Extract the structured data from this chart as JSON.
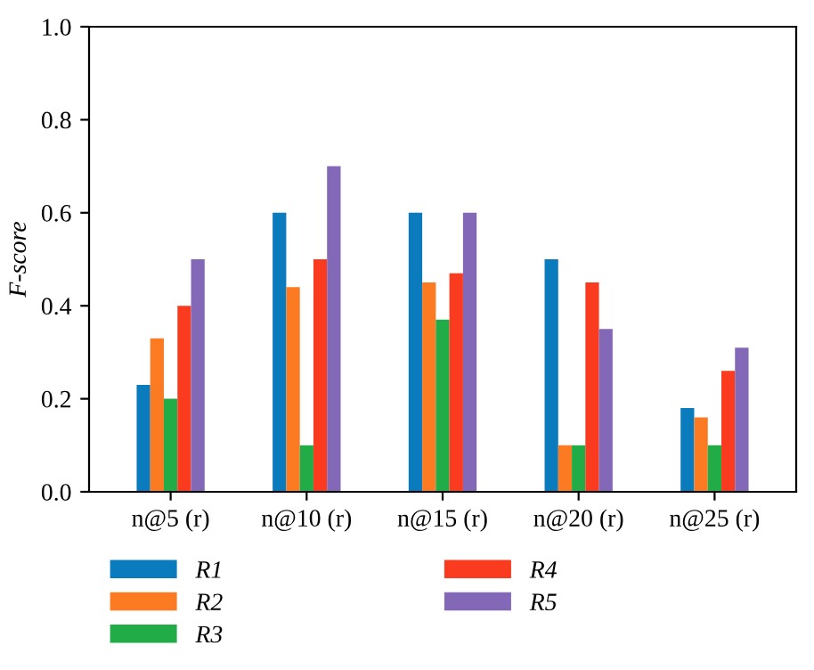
{
  "chart_data": {
    "type": "bar",
    "ylabel": "F-score",
    "categories": [
      "n@5 (r)",
      "n@10 (r)",
      "n@15 (r)",
      "n@20 (r)",
      "n@25 (r)"
    ],
    "series": [
      {
        "name": "R1",
        "color": "#0a7bbd",
        "values": [
          0.23,
          0.6,
          0.6,
          0.5,
          0.18
        ]
      },
      {
        "name": "R2",
        "color": "#fb7a22",
        "values": [
          0.33,
          0.44,
          0.45,
          0.1,
          0.16
        ]
      },
      {
        "name": "R3",
        "color": "#22ac48",
        "values": [
          0.2,
          0.1,
          0.37,
          0.1,
          0.1
        ]
      },
      {
        "name": "R4",
        "color": "#fa3b1f",
        "values": [
          0.4,
          0.5,
          0.47,
          0.45,
          0.26
        ]
      },
      {
        "name": "R5",
        "color": "#8468b8",
        "values": [
          0.5,
          0.7,
          0.6,
          0.35,
          0.31
        ]
      }
    ],
    "ylim": [
      0,
      1.0
    ],
    "yticks": [
      {
        "value": 0,
        "label": "0.0"
      },
      0.2,
      0.4,
      0.6,
      0.8,
      {
        "value": 1,
        "label": "1.0"
      }
    ],
    "grid": false,
    "legend": "bottom"
  }
}
